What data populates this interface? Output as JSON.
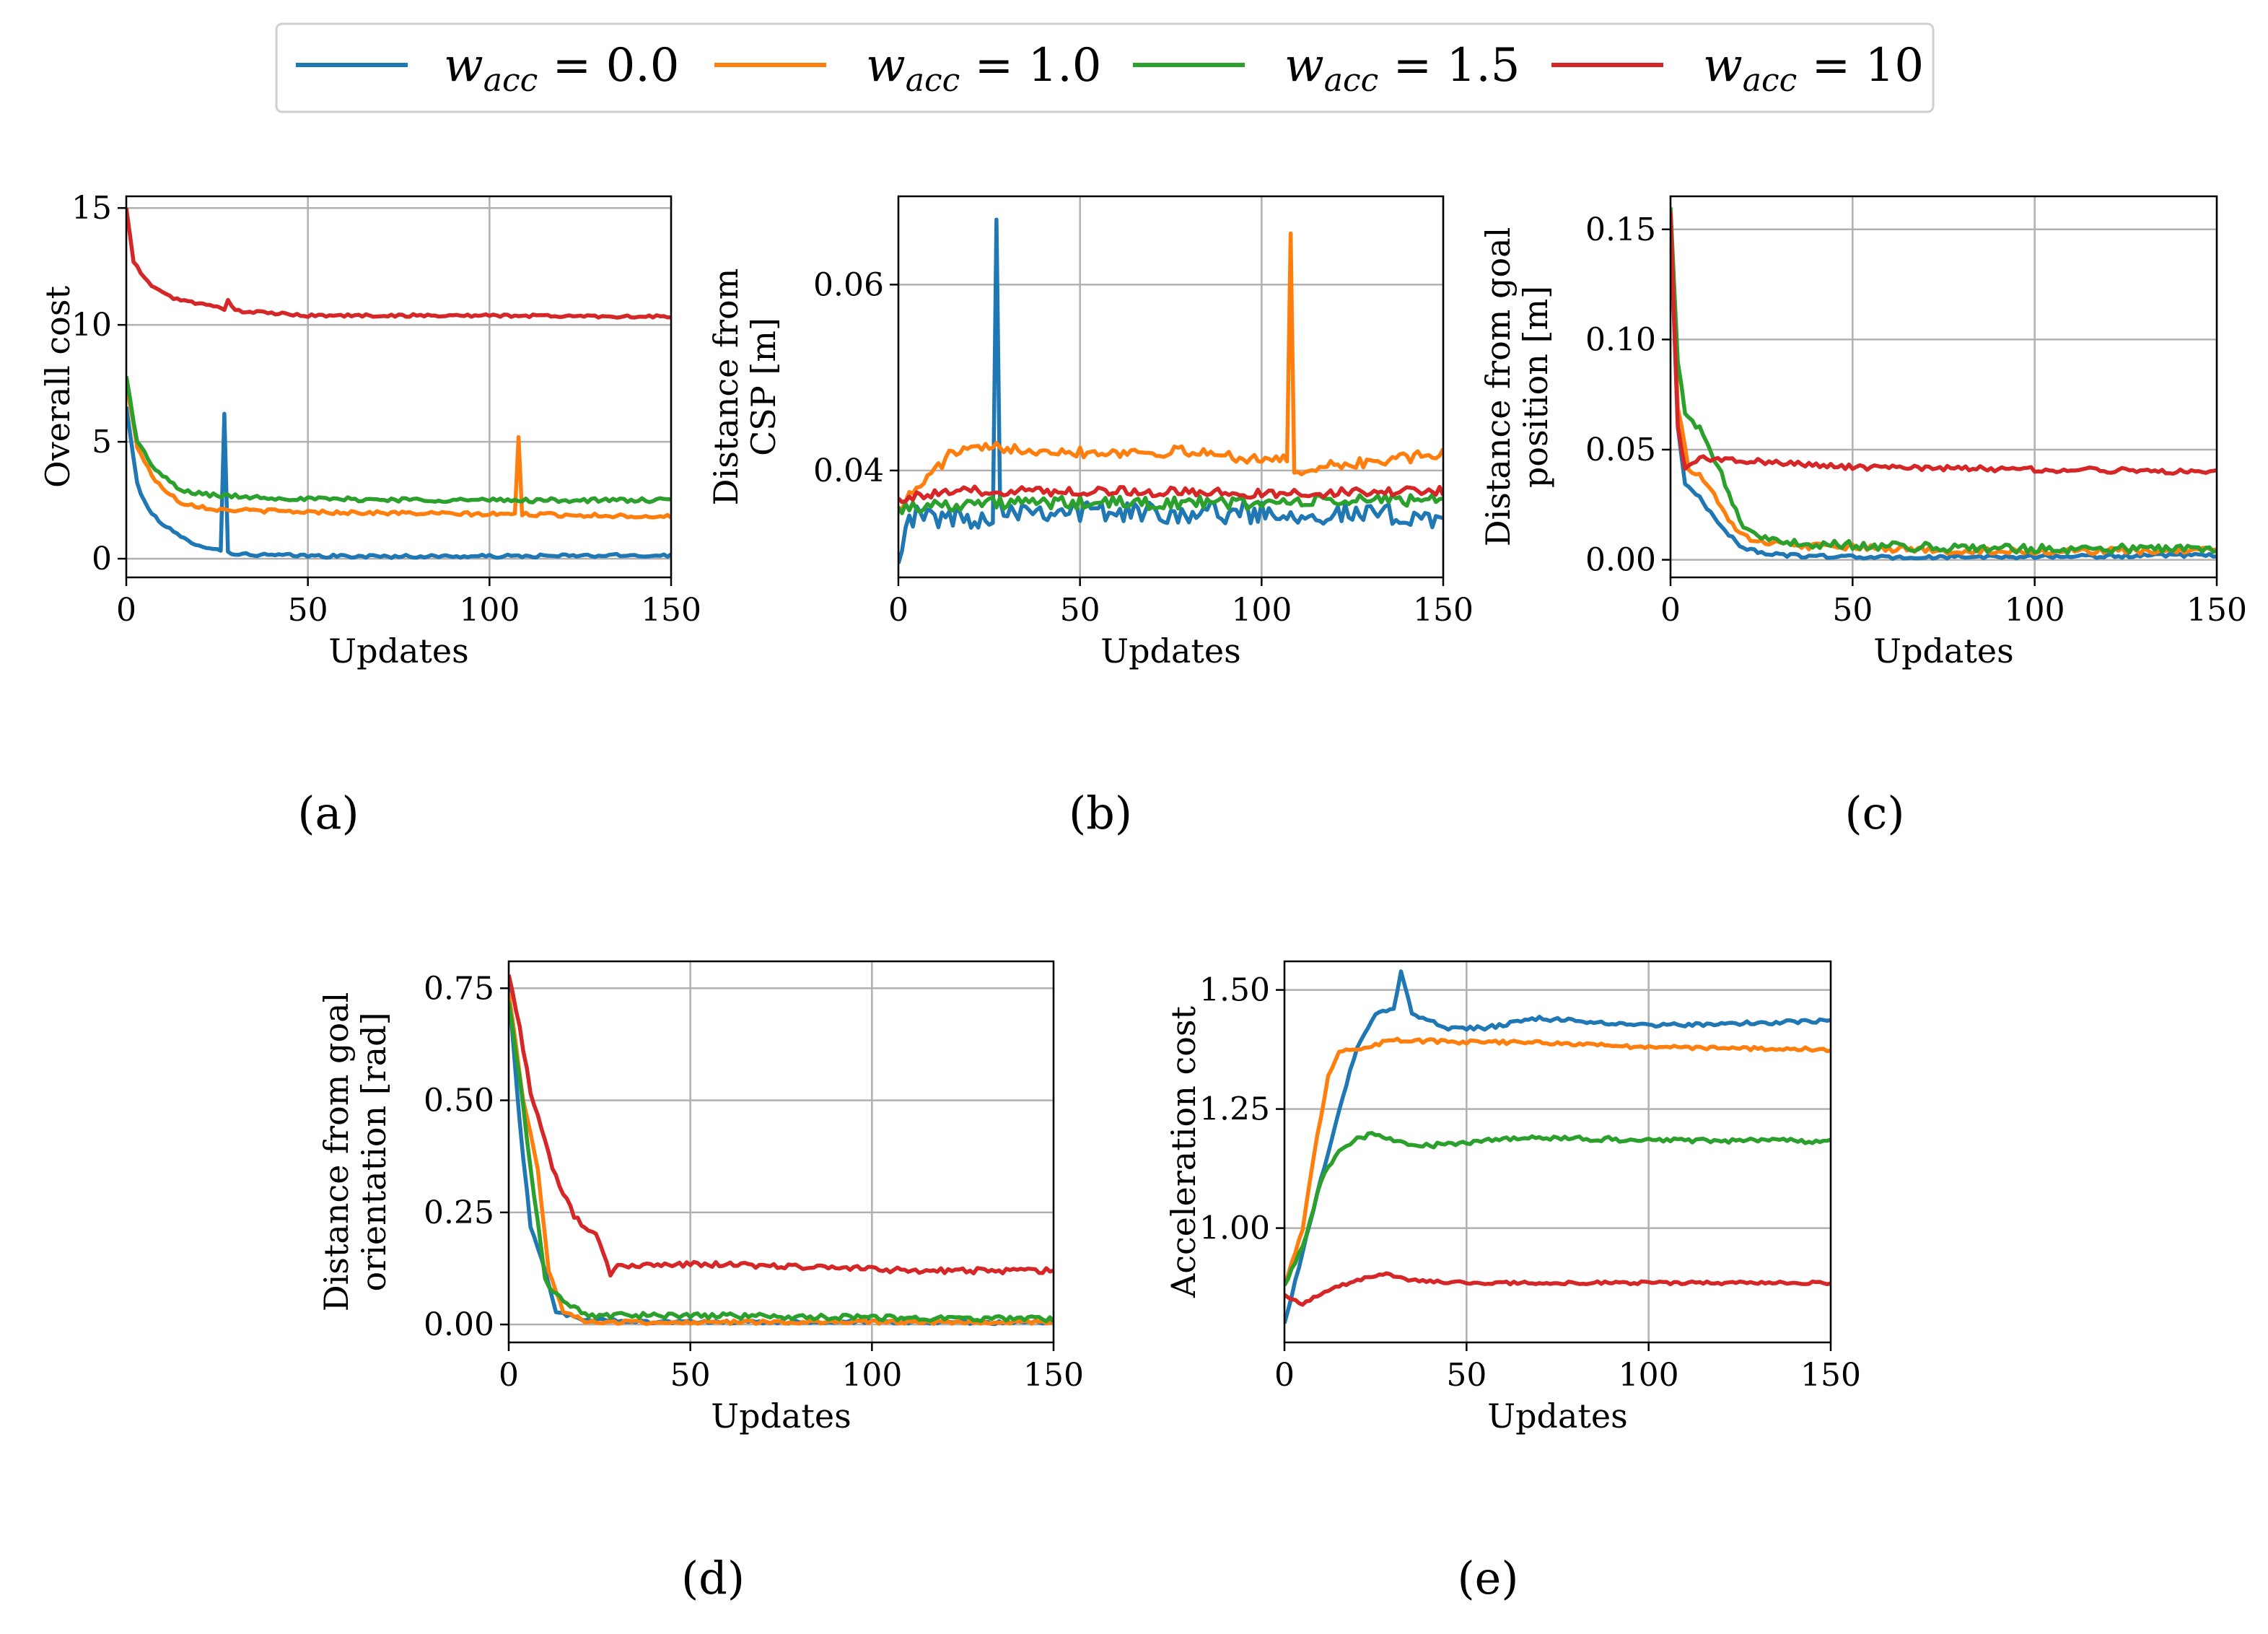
{
  "colors": {
    "w0": "#1f77b4",
    "w1": "#ff7f0e",
    "w15": "#2ca02c",
    "w10": "#d62728",
    "grid": "#b0b0b0"
  },
  "legend": {
    "var": "w",
    "sub": "acc",
    "entries": [
      {
        "series": "w0",
        "value": " = 0.0"
      },
      {
        "series": "w1",
        "value": " = 1.0"
      },
      {
        "series": "w15",
        "value": " = 1.5"
      },
      {
        "series": "w10",
        "value": " = 10"
      }
    ]
  },
  "panels": [
    {
      "id": "a",
      "caption": "(a)",
      "xlabel": "Updates",
      "ylabel_lines": [
        "Overall cost"
      ]
    },
    {
      "id": "b",
      "caption": "(b)",
      "xlabel": "Updates",
      "ylabel_lines": [
        "Distance from",
        "CSP [m]"
      ]
    },
    {
      "id": "c",
      "caption": "(c)",
      "xlabel": "Updates",
      "ylabel_lines": [
        "Distance from goal",
        "position [m]"
      ]
    },
    {
      "id": "d",
      "caption": "(d)",
      "xlabel": "Updates",
      "ylabel_lines": [
        "Distance from goal",
        "orientation [rad]"
      ]
    },
    {
      "id": "e",
      "caption": "(e)",
      "xlabel": "Updates",
      "ylabel_lines": [
        "Acceleration cost"
      ]
    }
  ],
  "chart_data": [
    {
      "id": "a",
      "type": "line",
      "title": "",
      "xlabel": "Updates",
      "ylabel": "Overall cost",
      "xlim": [
        0,
        150
      ],
      "ylim": [
        -0.8,
        15.5
      ],
      "xticks": [
        0,
        50,
        100,
        150
      ],
      "xtick_labels": [
        "0",
        "50",
        "100",
        "150"
      ],
      "yticks": [
        0,
        5,
        10,
        15
      ],
      "ytick_labels": [
        "0",
        "5",
        "10",
        "15"
      ],
      "grid": true,
      "series": [
        {
          "key": "w0",
          "name": "w_acc = 0.0",
          "noise": 0.07,
          "points": [
            [
              0,
              6.5
            ],
            [
              3,
              3.2
            ],
            [
              6,
              2.1
            ],
            [
              10,
              1.5
            ],
            [
              15,
              0.9
            ],
            [
              20,
              0.6
            ],
            [
              24,
              0.4
            ],
            [
              26,
              0.35
            ],
            [
              27,
              6.2
            ],
            [
              28,
              0.3
            ],
            [
              30,
              0.2
            ],
            [
              40,
              0.15
            ],
            [
              60,
              0.1
            ],
            [
              100,
              0.1
            ],
            [
              150,
              0.15
            ]
          ]
        },
        {
          "key": "w1",
          "name": "w_acc = 1.0",
          "noise": 0.08,
          "points": [
            [
              0,
              7.5
            ],
            [
              3,
              4.8
            ],
            [
              8,
              3.3
            ],
            [
              15,
              2.4
            ],
            [
              25,
              2.1
            ],
            [
              50,
              2.0
            ],
            [
              100,
              1.9
            ],
            [
              107,
              1.9
            ],
            [
              108,
              5.2
            ],
            [
              109,
              1.9
            ],
            [
              150,
              1.8
            ]
          ]
        },
        {
          "key": "w15",
          "name": "w_acc = 1.5",
          "noise": 0.09,
          "points": [
            [
              0,
              7.8
            ],
            [
              3,
              5.0
            ],
            [
              8,
              3.8
            ],
            [
              15,
              2.9
            ],
            [
              25,
              2.7
            ],
            [
              50,
              2.55
            ],
            [
              100,
              2.5
            ],
            [
              150,
              2.5
            ]
          ]
        },
        {
          "key": "w10",
          "name": "w_acc = 10",
          "noise": 0.06,
          "points": [
            [
              0,
              15.0
            ],
            [
              2,
              12.7
            ],
            [
              6,
              11.8
            ],
            [
              12,
              11.2
            ],
            [
              20,
              10.9
            ],
            [
              27,
              10.7
            ],
            [
              28,
              11.1
            ],
            [
              30,
              10.6
            ],
            [
              50,
              10.4
            ],
            [
              100,
              10.4
            ],
            [
              150,
              10.35
            ]
          ]
        }
      ]
    },
    {
      "id": "b",
      "type": "line",
      "title": "",
      "xlabel": "Updates",
      "ylabel": "Distance from CSP [m]",
      "xlim": [
        0,
        150
      ],
      "ylim": [
        0.0285,
        0.0695
      ],
      "xticks": [
        0,
        50,
        100,
        150
      ],
      "xtick_labels": [
        "0",
        "50",
        "100",
        "150"
      ],
      "yticks": [
        0.04,
        0.06
      ],
      "ytick_labels": [
        "0.04",
        "0.06"
      ],
      "grid": true,
      "series": [
        {
          "key": "w0",
          "name": "w_acc = 0.0",
          "noise": 0.0012,
          "points": [
            [
              0,
              0.03
            ],
            [
              2,
              0.035
            ],
            [
              10,
              0.035
            ],
            [
              26,
              0.035
            ],
            [
              27,
              0.067
            ],
            [
              28,
              0.036
            ],
            [
              60,
              0.0355
            ],
            [
              100,
              0.0355
            ],
            [
              150,
              0.035
            ]
          ]
        },
        {
          "key": "w1",
          "name": "w_acc = 1.0",
          "noise": 0.0006,
          "points": [
            [
              0,
              0.036
            ],
            [
              5,
              0.038
            ],
            [
              15,
              0.042
            ],
            [
              30,
              0.0425
            ],
            [
              50,
              0.042
            ],
            [
              80,
              0.042
            ],
            [
              107,
              0.041
            ],
            [
              108,
              0.0655
            ],
            [
              109,
              0.04
            ],
            [
              150,
              0.0418
            ]
          ]
        },
        {
          "key": "w15",
          "name": "w_acc = 1.5",
          "noise": 0.0007,
          "points": [
            [
              0,
              0.036
            ],
            [
              20,
              0.0365
            ],
            [
              60,
              0.0365
            ],
            [
              100,
              0.0365
            ],
            [
              150,
              0.037
            ]
          ]
        },
        {
          "key": "w10",
          "name": "w_acc = 10",
          "noise": 0.0005,
          "points": [
            [
              0,
              0.037
            ],
            [
              20,
              0.0378
            ],
            [
              60,
              0.0378
            ],
            [
              100,
              0.0375
            ],
            [
              150,
              0.0378
            ]
          ]
        }
      ]
    },
    {
      "id": "c",
      "type": "line",
      "title": "",
      "xlabel": "Updates",
      "ylabel": "Distance from goal position [m]",
      "xlim": [
        0,
        150
      ],
      "ylim": [
        -0.008,
        0.165
      ],
      "xticks": [
        0,
        50,
        100,
        150
      ],
      "xtick_labels": [
        "0",
        "50",
        "100",
        "150"
      ],
      "yticks": [
        0.0,
        0.05,
        0.1,
        0.15
      ],
      "ytick_labels": [
        "0.00",
        "0.05",
        "0.10",
        "0.15"
      ],
      "grid": true,
      "series": [
        {
          "key": "w0",
          "name": "w_acc = 0.0",
          "noise": 0.0008,
          "points": [
            [
              0,
              0.155
            ],
            [
              2,
              0.06
            ],
            [
              4,
              0.035
            ],
            [
              8,
              0.028
            ],
            [
              14,
              0.015
            ],
            [
              20,
              0.005
            ],
            [
              30,
              0.002
            ],
            [
              60,
              0.001
            ],
            [
              150,
              0.002
            ]
          ]
        },
        {
          "key": "w1",
          "name": "w_acc = 1.0",
          "noise": 0.0015,
          "points": [
            [
              0,
              0.158
            ],
            [
              2,
              0.07
            ],
            [
              5,
              0.042
            ],
            [
              10,
              0.035
            ],
            [
              15,
              0.02
            ],
            [
              22,
              0.008
            ],
            [
              40,
              0.006
            ],
            [
              80,
              0.004
            ],
            [
              150,
              0.004
            ]
          ]
        },
        {
          "key": "w15",
          "name": "w_acc = 1.5",
          "noise": 0.002,
          "points": [
            [
              0,
              0.16
            ],
            [
              2,
              0.09
            ],
            [
              4,
              0.065
            ],
            [
              9,
              0.058
            ],
            [
              14,
              0.038
            ],
            [
              20,
              0.015
            ],
            [
              28,
              0.008
            ],
            [
              60,
              0.006
            ],
            [
              100,
              0.005
            ],
            [
              150,
              0.005
            ]
          ]
        },
        {
          "key": "w10",
          "name": "w_acc = 10",
          "noise": 0.0012,
          "points": [
            [
              0,
              0.158
            ],
            [
              2,
              0.06
            ],
            [
              4,
              0.042
            ],
            [
              8,
              0.046
            ],
            [
              20,
              0.045
            ],
            [
              50,
              0.042
            ],
            [
              100,
              0.041
            ],
            [
              150,
              0.04
            ]
          ]
        }
      ]
    },
    {
      "id": "d",
      "type": "line",
      "title": "",
      "xlabel": "Updates",
      "ylabel": "Distance from goal orientation [rad]",
      "xlim": [
        0,
        150
      ],
      "ylim": [
        -0.04,
        0.81
      ],
      "xticks": [
        0,
        50,
        100,
        150
      ],
      "xtick_labels": [
        "0",
        "50",
        "100",
        "150"
      ],
      "yticks": [
        0.0,
        0.25,
        0.5,
        0.75
      ],
      "ytick_labels": [
        "0.00",
        "0.25",
        "0.50",
        "0.75"
      ],
      "grid": true,
      "series": [
        {
          "key": "w0",
          "name": "w_acc = 0.0",
          "noise": 0.004,
          "points": [
            [
              0,
              0.75
            ],
            [
              3,
              0.45
            ],
            [
              6,
              0.22
            ],
            [
              9,
              0.15
            ],
            [
              13,
              0.03
            ],
            [
              20,
              0.01
            ],
            [
              50,
              0.005
            ],
            [
              150,
              0.005
            ]
          ]
        },
        {
          "key": "w1",
          "name": "w_acc = 1.0",
          "noise": 0.004,
          "points": [
            [
              0,
              0.74
            ],
            [
              4,
              0.5
            ],
            [
              8,
              0.35
            ],
            [
              11,
              0.12
            ],
            [
              15,
              0.03
            ],
            [
              22,
              0.005
            ],
            [
              50,
              0.005
            ],
            [
              150,
              0.005
            ]
          ]
        },
        {
          "key": "w15",
          "name": "w_acc = 1.5",
          "noise": 0.006,
          "points": [
            [
              0,
              0.72
            ],
            [
              3,
              0.55
            ],
            [
              6,
              0.35
            ],
            [
              10,
              0.1
            ],
            [
              15,
              0.05
            ],
            [
              22,
              0.02
            ],
            [
              50,
              0.02
            ],
            [
              100,
              0.015
            ],
            [
              150,
              0.012
            ]
          ]
        },
        {
          "key": "w10",
          "name": "w_acc = 10",
          "noise": 0.006,
          "points": [
            [
              0,
              0.78
            ],
            [
              3,
              0.66
            ],
            [
              6,
              0.52
            ],
            [
              12,
              0.35
            ],
            [
              18,
              0.24
            ],
            [
              24,
              0.2
            ],
            [
              28,
              0.11
            ],
            [
              30,
              0.13
            ],
            [
              50,
              0.135
            ],
            [
              80,
              0.13
            ],
            [
              110,
              0.12
            ],
            [
              150,
              0.12
            ]
          ]
        }
      ]
    },
    {
      "id": "e",
      "type": "line",
      "title": "",
      "xlabel": "Updates",
      "ylabel": "Acceleration cost",
      "xlim": [
        0,
        150
      ],
      "ylim": [
        0.76,
        1.56
      ],
      "xticks": [
        0,
        50,
        100,
        150
      ],
      "xtick_labels": [
        "0",
        "50",
        "100",
        "150"
      ],
      "yticks": [
        1.0,
        1.25,
        1.5
      ],
      "ytick_labels": [
        "1.00",
        "1.25",
        "1.50"
      ],
      "grid": true,
      "series": [
        {
          "key": "w0",
          "name": "w_acc = 0.0",
          "noise": 0.004,
          "points": [
            [
              0,
              0.8
            ],
            [
              5,
              0.95
            ],
            [
              10,
              1.1
            ],
            [
              15,
              1.25
            ],
            [
              20,
              1.38
            ],
            [
              25,
              1.45
            ],
            [
              30,
              1.46
            ],
            [
              32,
              1.54
            ],
            [
              35,
              1.45
            ],
            [
              45,
              1.42
            ],
            [
              55,
              1.42
            ],
            [
              70,
              1.44
            ],
            [
              100,
              1.425
            ],
            [
              150,
              1.435
            ]
          ]
        },
        {
          "key": "w1",
          "name": "w_acc = 1.0",
          "noise": 0.004,
          "points": [
            [
              0,
              0.88
            ],
            [
              5,
              1.0
            ],
            [
              8,
              1.15
            ],
            [
              12,
              1.32
            ],
            [
              15,
              1.37
            ],
            [
              22,
              1.38
            ],
            [
              30,
              1.395
            ],
            [
              50,
              1.39
            ],
            [
              70,
              1.39
            ],
            [
              100,
              1.38
            ],
            [
              150,
              1.375
            ]
          ]
        },
        {
          "key": "w15",
          "name": "w_acc = 1.5",
          "noise": 0.005,
          "points": [
            [
              0,
              0.88
            ],
            [
              5,
              0.96
            ],
            [
              10,
              1.1
            ],
            [
              14,
              1.15
            ],
            [
              18,
              1.18
            ],
            [
              25,
              1.2
            ],
            [
              35,
              1.17
            ],
            [
              50,
              1.18
            ],
            [
              70,
              1.19
            ],
            [
              100,
              1.185
            ],
            [
              150,
              1.183
            ]
          ]
        },
        {
          "key": "w10",
          "name": "w_acc = 10",
          "noise": 0.003,
          "points": [
            [
              0,
              0.86
            ],
            [
              5,
              0.84
            ],
            [
              12,
              0.87
            ],
            [
              20,
              0.89
            ],
            [
              28,
              0.905
            ],
            [
              35,
              0.89
            ],
            [
              50,
              0.885
            ],
            [
              100,
              0.885
            ],
            [
              150,
              0.885
            ]
          ]
        }
      ]
    }
  ]
}
